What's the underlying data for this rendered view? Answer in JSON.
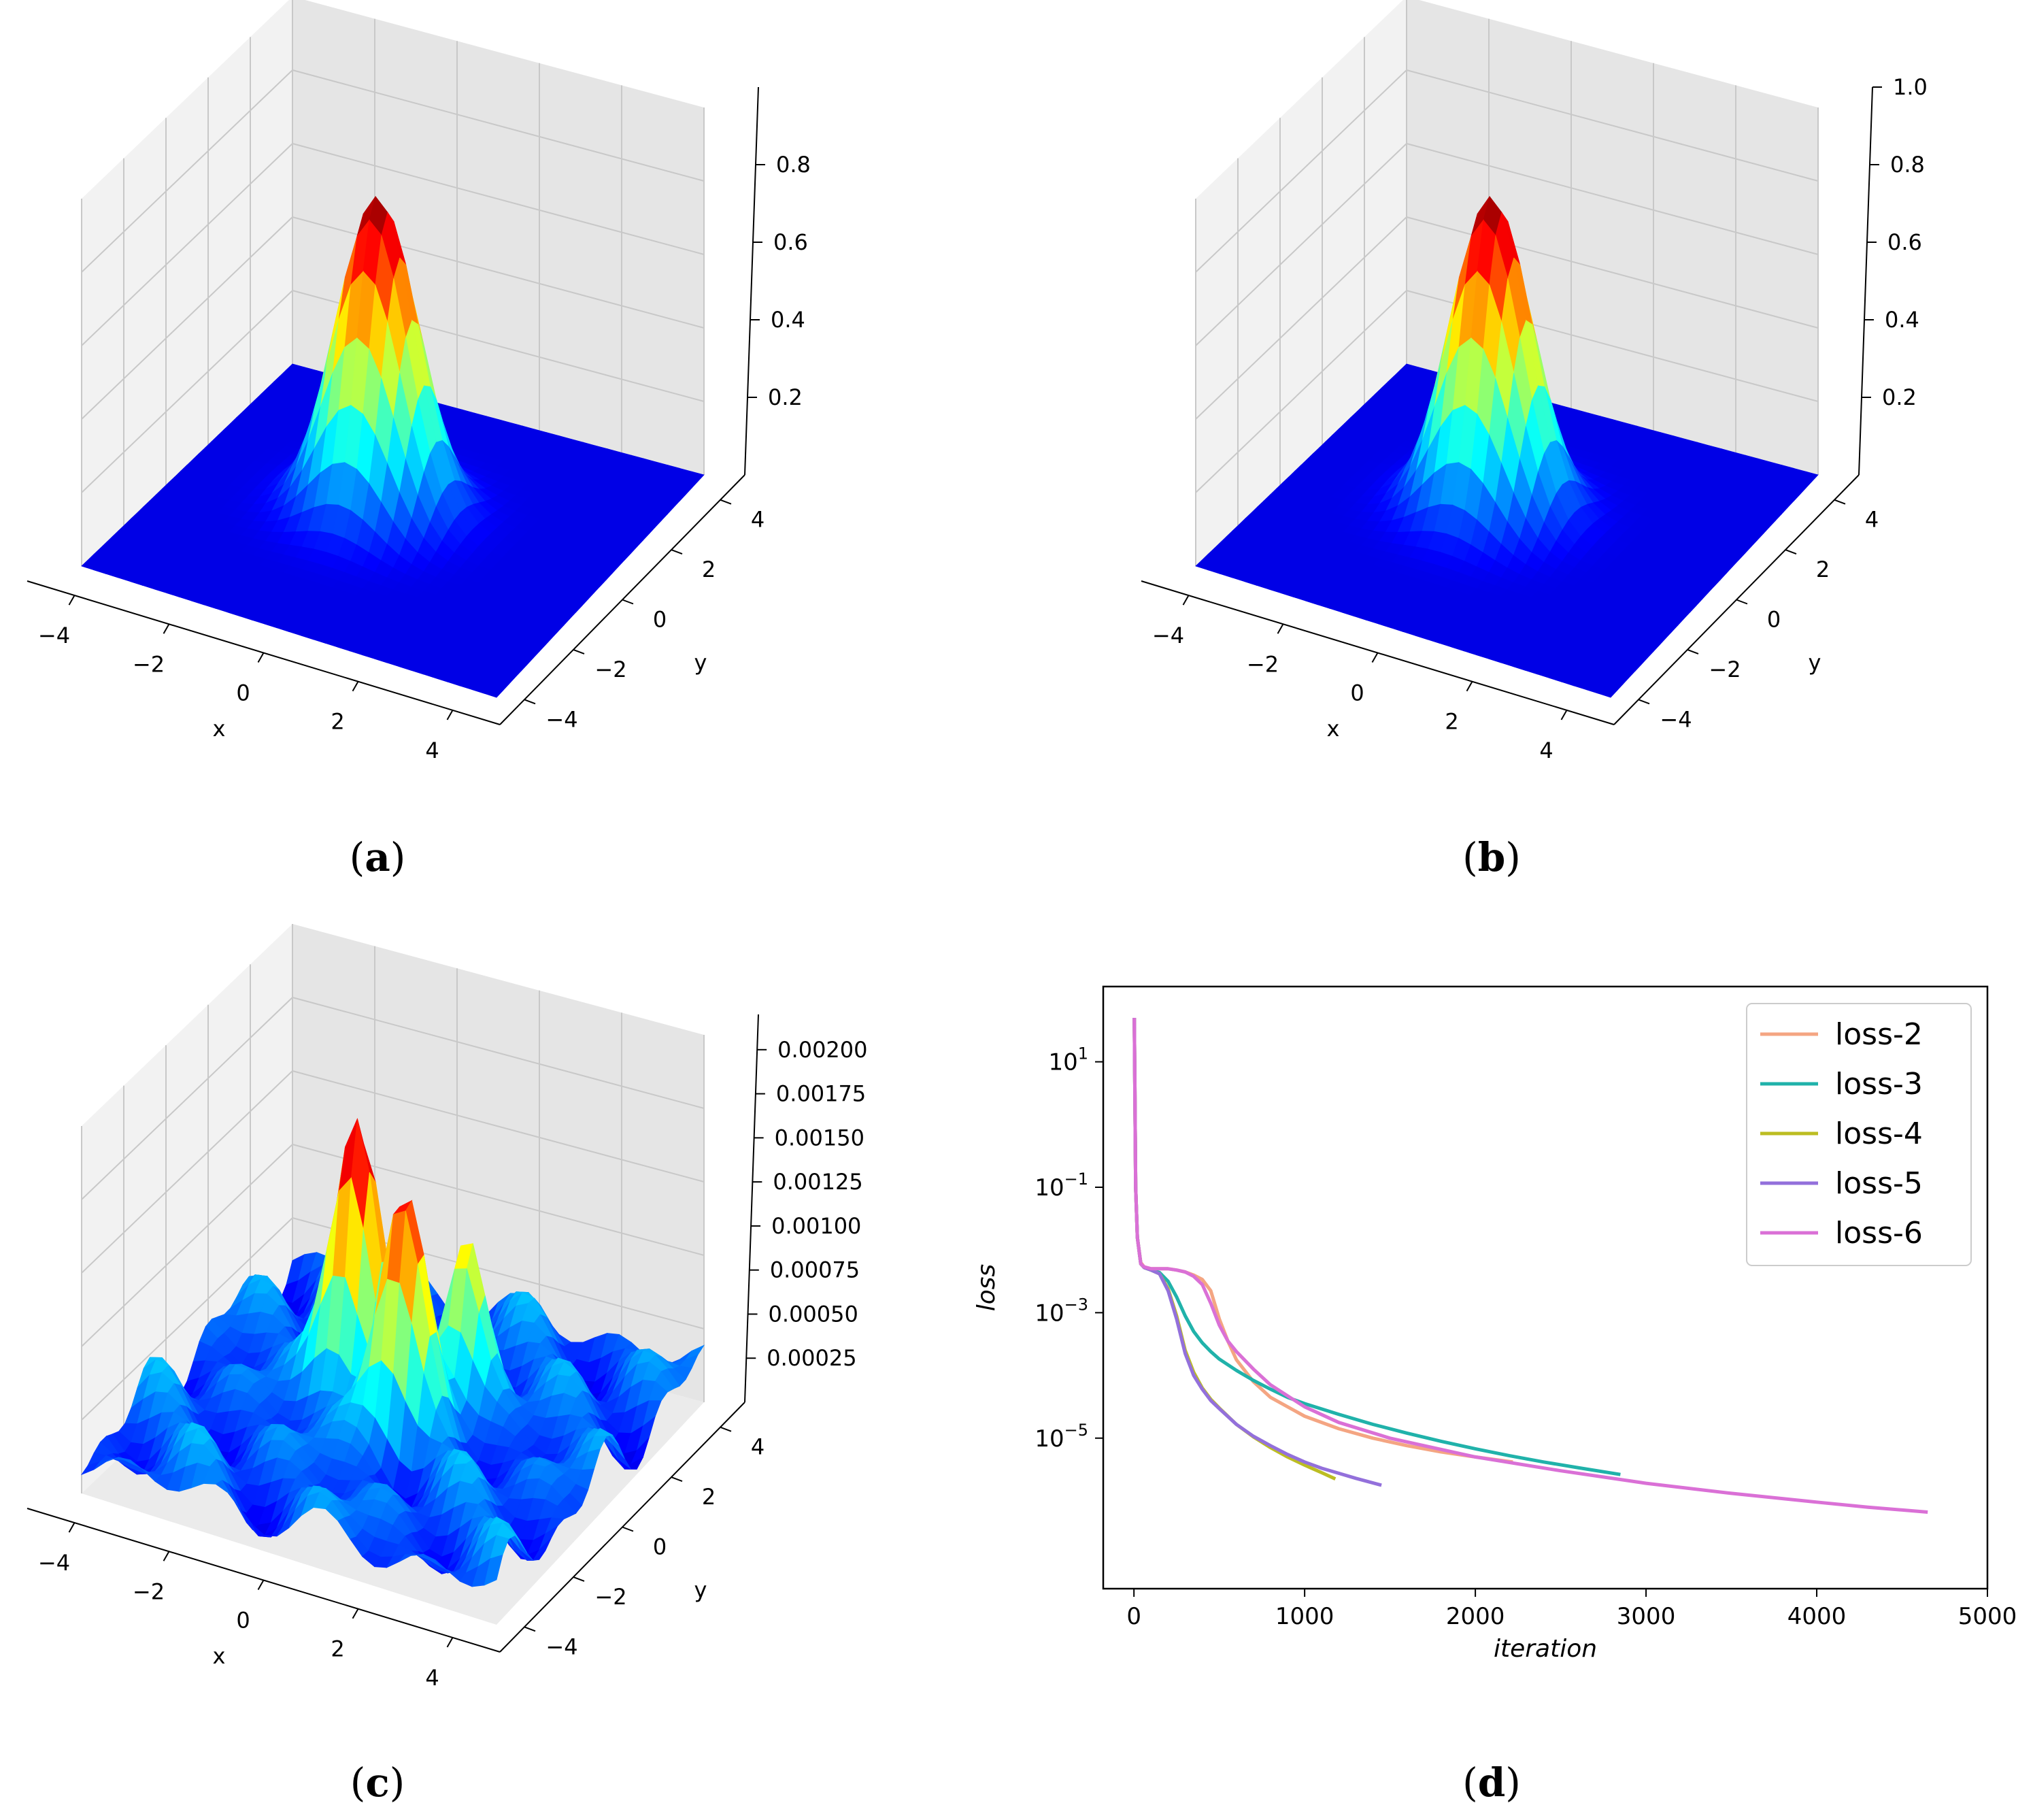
{
  "panels": [
    {
      "id": "a",
      "caption_open": "(",
      "caption_letter": "a",
      "caption_close": ")"
    },
    {
      "id": "b",
      "caption_open": "(",
      "caption_letter": "b",
      "caption_close": ")"
    },
    {
      "id": "c",
      "caption_open": "(",
      "caption_letter": "c",
      "caption_close": ")"
    },
    {
      "id": "d",
      "caption_open": "(",
      "caption_letter": "d",
      "caption_close": ")"
    }
  ],
  "chart_data": [
    {
      "panel": "a",
      "type": "surface3d",
      "description_function": "gaussian peak exp(-(x^2+y^2)/2) approx",
      "xlabel": "x",
      "ylabel": "y",
      "x_ticks": [
        "−4",
        "−2",
        "0",
        "2",
        "4"
      ],
      "y_ticks": [
        "−4",
        "−2",
        "0",
        "2",
        "4"
      ],
      "z_ticks": [
        "0.2",
        "0.4",
        "0.6",
        "0.8"
      ],
      "xlim": [
        -5,
        5
      ],
      "ylim": [
        -5,
        5
      ],
      "zlim": [
        0,
        1.0
      ],
      "peak": 0.95,
      "colormap": "jet"
    },
    {
      "panel": "b",
      "type": "surface3d",
      "xlabel": "x",
      "ylabel": "y",
      "x_ticks": [
        "−4",
        "−2",
        "0",
        "2",
        "4"
      ],
      "y_ticks": [
        "−4",
        "−2",
        "0",
        "2",
        "4"
      ],
      "z_ticks": [
        "0.2",
        "0.4",
        "0.6",
        "0.8",
        "1.0"
      ],
      "xlim": [
        -5,
        5
      ],
      "ylim": [
        -5,
        5
      ],
      "zlim": [
        0,
        1.0
      ],
      "peak": 0.95,
      "colormap": "jet"
    },
    {
      "panel": "c",
      "type": "surface3d",
      "xlabel": "x",
      "ylabel": "y",
      "x_ticks": [
        "−4",
        "−2",
        "0",
        "2",
        "4"
      ],
      "y_ticks": [
        "−4",
        "−2",
        "0",
        "2",
        "4"
      ],
      "z_ticks": [
        "0.00025",
        "0.00050",
        "0.00075",
        "0.00100",
        "0.00125",
        "0.00150",
        "0.00175",
        "0.00200"
      ],
      "xlim": [
        -5,
        5
      ],
      "ylim": [
        -5,
        5
      ],
      "zlim": [
        0,
        0.0022
      ],
      "peak": 0.00205,
      "colormap": "jet"
    },
    {
      "panel": "d",
      "type": "line",
      "yscale": "log",
      "xlabel": "iteration",
      "ylabel": "loss",
      "xlim": [
        -180,
        5000
      ],
      "ylim_exp": [
        -7.4,
        2.2
      ],
      "x_ticks": [
        0,
        1000,
        2000,
        3000,
        4000,
        5000
      ],
      "y_ticks": [
        {
          "base": "10",
          "exp": "1",
          "value_exp": 1
        },
        {
          "base": "10",
          "exp": "−1",
          "value_exp": -1
        },
        {
          "base": "10",
          "exp": "−3",
          "value_exp": -3
        },
        {
          "base": "10",
          "exp": "−5",
          "value_exp": -5
        }
      ],
      "legend_position": "top-right",
      "series": [
        {
          "name": "loss-2",
          "color": "#f4a582",
          "x": [
            0,
            10,
            20,
            40,
            60,
            100,
            150,
            200,
            250,
            300,
            350,
            400,
            450,
            500,
            550,
            600,
            700,
            800,
            1000,
            1200,
            1400,
            1600,
            1800,
            2000,
            2220
          ],
          "log10y": [
            1.7,
            -1.0,
            -1.8,
            -2.2,
            -2.27,
            -2.3,
            -2.3,
            -2.3,
            -2.32,
            -2.35,
            -2.4,
            -2.47,
            -2.65,
            -3.1,
            -3.45,
            -3.75,
            -4.1,
            -4.35,
            -4.65,
            -4.85,
            -5.0,
            -5.12,
            -5.22,
            -5.3,
            -5.38
          ]
        },
        {
          "name": "loss-3",
          "color": "#20b2aa",
          "x": [
            0,
            10,
            20,
            40,
            60,
            100,
            150,
            200,
            250,
            300,
            350,
            400,
            450,
            500,
            600,
            700,
            800,
            900,
            1000,
            1200,
            1400,
            1600,
            1800,
            2000,
            2200,
            2400,
            2600,
            2850
          ],
          "log10y": [
            1.7,
            -1.0,
            -1.8,
            -2.22,
            -2.28,
            -2.32,
            -2.36,
            -2.5,
            -2.75,
            -3.05,
            -3.3,
            -3.48,
            -3.62,
            -3.74,
            -3.92,
            -4.08,
            -4.22,
            -4.35,
            -4.45,
            -4.62,
            -4.78,
            -4.92,
            -5.05,
            -5.17,
            -5.28,
            -5.38,
            -5.47,
            -5.58
          ]
        },
        {
          "name": "loss-4",
          "color": "#bcbd22",
          "x": [
            0,
            10,
            20,
            40,
            60,
            100,
            150,
            200,
            250,
            300,
            350,
            400,
            450,
            500,
            600,
            700,
            800,
            900,
            1000,
            1100,
            1180
          ],
          "log10y": [
            1.7,
            -1.0,
            -1.8,
            -2.22,
            -2.28,
            -2.32,
            -2.38,
            -2.62,
            -3.05,
            -3.6,
            -3.95,
            -4.2,
            -4.38,
            -4.52,
            -4.78,
            -4.98,
            -5.15,
            -5.3,
            -5.43,
            -5.55,
            -5.65
          ]
        },
        {
          "name": "loss-5",
          "color": "#9370db",
          "x": [
            0,
            10,
            20,
            40,
            60,
            100,
            150,
            200,
            250,
            300,
            350,
            400,
            450,
            500,
            600,
            700,
            800,
            900,
            1000,
            1100,
            1200,
            1300,
            1450
          ],
          "log10y": [
            1.7,
            -1.0,
            -1.8,
            -2.22,
            -2.28,
            -2.32,
            -2.38,
            -2.65,
            -3.1,
            -3.65,
            -4.0,
            -4.22,
            -4.4,
            -4.53,
            -4.78,
            -4.97,
            -5.12,
            -5.26,
            -5.38,
            -5.48,
            -5.56,
            -5.64,
            -5.75
          ]
        },
        {
          "name": "loss-6",
          "color": "#da70d6",
          "x": [
            0,
            10,
            20,
            40,
            60,
            100,
            150,
            200,
            250,
            300,
            350,
            400,
            450,
            500,
            550,
            600,
            700,
            800,
            1000,
            1200,
            1500,
            2000,
            2500,
            3000,
            3500,
            4000,
            4300,
            4650
          ],
          "log10y": [
            1.7,
            -1.0,
            -1.8,
            -2.22,
            -2.27,
            -2.3,
            -2.3,
            -2.3,
            -2.32,
            -2.35,
            -2.42,
            -2.55,
            -2.85,
            -3.2,
            -3.45,
            -3.62,
            -3.9,
            -4.15,
            -4.5,
            -4.75,
            -5.0,
            -5.3,
            -5.52,
            -5.72,
            -5.88,
            -6.02,
            -6.1,
            -6.18
          ]
        }
      ]
    }
  ]
}
